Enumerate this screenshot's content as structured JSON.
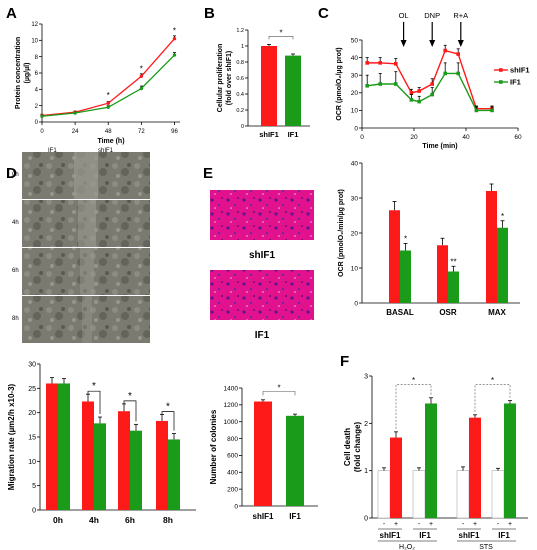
{
  "panel_labels": {
    "A": "A",
    "B": "B",
    "C": "C",
    "D": "D",
    "E": "E",
    "F": "F"
  },
  "colors": {
    "red": "#ff1a1a",
    "green": "#1a9b1a",
    "grey": "#6e6e6e",
    "magenta": "#e2128f",
    "micro_bg": "#6a6a62"
  },
  "chart_data": [
    {
      "panel": "A",
      "type": "line",
      "xlabel": "Time (h)",
      "ylabel": "Protein concentration (µg/µl)",
      "x": [
        0,
        24,
        48,
        72,
        96
      ],
      "xlim": [
        0,
        100
      ],
      "ylim": [
        0,
        12
      ],
      "xticks": [
        0,
        24,
        48,
        72,
        96
      ],
      "yticks": [
        0,
        2,
        4,
        6,
        8,
        10,
        12
      ],
      "series": [
        {
          "name": "shIF1",
          "color": "#ff1a1a",
          "values": [
            0.8,
            1.2,
            2.3,
            5.6,
            10.2
          ],
          "errors": [
            0.15,
            0.15,
            0.2,
            0.3,
            0.35
          ]
        },
        {
          "name": "IF1",
          "color": "#1a9b1a",
          "values": [
            0.7,
            1.1,
            1.8,
            4.1,
            8.2
          ],
          "errors": [
            0.15,
            0.15,
            0.2,
            0.3,
            0.3
          ]
        }
      ],
      "annotations": [
        "*",
        "*",
        "*"
      ]
    },
    {
      "panel": "B",
      "type": "bar",
      "ylabel": "Cellular proliferation (fold over shIF1)",
      "categories": [
        "shIF1",
        "IF1"
      ],
      "ylim": [
        0,
        1.2
      ],
      "yticks": [
        0,
        0.2,
        0.4,
        0.6,
        0.8,
        1,
        1.2
      ],
      "series": [
        {
          "values": [
            1.0,
            0.88
          ],
          "errors": [
            0.02,
            0.02
          ]
        }
      ],
      "annotation": "*"
    },
    {
      "panel": "C-top",
      "type": "line",
      "xlabel": "Time (min)",
      "ylabel": "OCR (pmolO₂/µg prot)",
      "xlim": [
        0,
        60
      ],
      "ylim": [
        0,
        50
      ],
      "xticks": [
        0,
        20,
        40,
        60
      ],
      "yticks": [
        0,
        10,
        20,
        30,
        40,
        50
      ],
      "x": [
        2,
        7,
        13,
        19,
        22,
        27,
        32,
        37,
        44,
        50
      ],
      "series": [
        {
          "name": "shIF1",
          "color": "#ff1a1a",
          "values": [
            37,
            37,
            36.5,
            20,
            21,
            25,
            44,
            42,
            11,
            11
          ],
          "errors": [
            3,
            3,
            3,
            2,
            2,
            3,
            3,
            3,
            1.5,
            1.5
          ]
        },
        {
          "name": "IF1",
          "color": "#1a9b1a",
          "values": [
            24,
            25,
            25,
            16,
            15,
            19,
            31,
            31,
            10,
            10
          ],
          "errors": [
            6,
            6,
            7,
            3,
            3,
            4,
            6,
            6,
            2,
            2
          ]
        }
      ],
      "injections": [
        {
          "label": "OL",
          "x": 16
        },
        {
          "label": "DNP",
          "x": 27
        },
        {
          "label": "R+A",
          "x": 38
        }
      ],
      "legend_position": "right"
    },
    {
      "panel": "C-bottom",
      "type": "bar",
      "ylabel": "OCR (pmolO₂/min/µg prot)",
      "categories": [
        "BASAL",
        "OSR",
        "MAX"
      ],
      "ylim": [
        0,
        40
      ],
      "yticks": [
        0,
        10,
        20,
        30,
        40
      ],
      "series": [
        {
          "color": "#ff1a1a",
          "values": [
            26.5,
            16.5,
            32
          ],
          "errors": [
            2.5,
            2,
            2
          ]
        },
        {
          "color": "#1a9b1a",
          "values": [
            15,
            9,
            21.5
          ],
          "errors": [
            2,
            1.5,
            2
          ]
        }
      ],
      "annotations": [
        "*",
        "**",
        "*"
      ]
    },
    {
      "panel": "D",
      "type": "bar",
      "ylabel": "Migration rate (µm2/h x10-3)",
      "categories": [
        "0h",
        "4h",
        "6h",
        "8h"
      ],
      "ylim": [
        0,
        30
      ],
      "yticks": [
        0,
        5,
        10,
        15,
        20,
        25,
        30
      ],
      "series": [
        {
          "color": "#ff1a1a",
          "values": [
            26,
            22.3,
            20.3,
            18.3
          ],
          "errors": [
            1.2,
            1.5,
            1.5,
            1.3
          ]
        },
        {
          "color": "#1a9b1a",
          "values": [
            26,
            17.8,
            16.3,
            14.5
          ],
          "errors": [
            1,
            1.3,
            1.3,
            1.2
          ]
        }
      ],
      "annotations": [
        "*",
        "*",
        "*"
      ]
    },
    {
      "panel": "E",
      "type": "bar",
      "ylabel": "Number of colonies",
      "categories": [
        "shIF1",
        "IF1"
      ],
      "ylim": [
        0,
        1400
      ],
      "yticks": [
        0,
        200,
        400,
        600,
        800,
        1000,
        1200,
        1400
      ],
      "series": [
        {
          "values": [
            1240,
            1070
          ],
          "errors": [
            20,
            20
          ]
        }
      ],
      "annotation": "*"
    },
    {
      "panel": "F",
      "type": "bar",
      "ylabel": "Cell death (fold change)",
      "ylim": [
        0,
        3
      ],
      "yticks": [
        0,
        1,
        2,
        3
      ],
      "groups": [
        "shIF1",
        "IF1",
        "shIF1",
        "IF1"
      ],
      "treatment_signs": [
        "-",
        "+",
        "-",
        "+",
        "-",
        "+",
        "-",
        "+"
      ],
      "treatments": [
        "H₂O₂",
        "STS"
      ],
      "series": [
        {
          "values": [
            1,
            1.7,
            1,
            2.42,
            1,
            2.12,
            1,
            2.42
          ],
          "errors": [
            0.06,
            0.12,
            0.06,
            0.12,
            0.08,
            0.06,
            0.05,
            0.06
          ],
          "fills": [
            "white",
            "#ff1a1a",
            "white",
            "#1a9b1a",
            "white",
            "#ff1a1a",
            "white",
            "#1a9b1a"
          ]
        }
      ],
      "annotations": [
        "*",
        "*"
      ]
    }
  ],
  "panel_d_micro": {
    "columns": [
      "IF1",
      "shIF1"
    ],
    "rows": [
      "0h",
      "4h",
      "6h",
      "8h"
    ]
  },
  "panel_e_micro": {
    "captions": [
      "shIF1",
      "IF1"
    ]
  }
}
